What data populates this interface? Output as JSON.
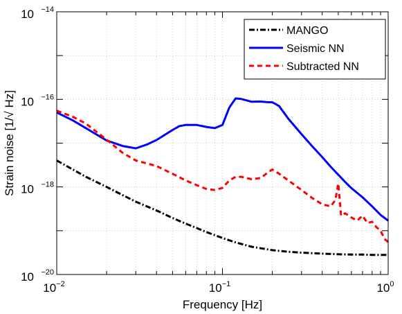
{
  "chart_data": {
    "type": "line",
    "xlabel": "Frequency [Hz]",
    "ylabel_prefix": "Strain noise [1/",
    "ylabel_suffix": " Hz]",
    "sqrt_symbol": "√",
    "x_scale": "log",
    "y_scale": "log",
    "xlim": [
      0.01,
      1
    ],
    "ylim": [
      1e-20,
      1e-14
    ],
    "grid": "dotted",
    "legend_position": "top-right",
    "x_ticks": [
      {
        "value": 0.01,
        "base": "10",
        "exp": "−2"
      },
      {
        "value": 0.1,
        "base": "10",
        "exp": "−1"
      },
      {
        "value": 1,
        "base": "10",
        "exp": "0"
      }
    ],
    "y_ticks": [
      {
        "value": 1e-20,
        "base": "10",
        "exp": "−20"
      },
      {
        "value": 1e-18,
        "base": "10",
        "exp": "−18"
      },
      {
        "value": 1e-16,
        "base": "10",
        "exp": "−16"
      },
      {
        "value": 1e-14,
        "base": "10",
        "exp": "−14"
      }
    ],
    "series": [
      {
        "name": "MANGO",
        "color": "#000000",
        "dash": "dashdot",
        "x": [
          0.01,
          0.0125,
          0.015,
          0.02,
          0.025,
          0.03,
          0.04,
          0.05,
          0.06,
          0.07,
          0.08,
          0.1,
          0.12,
          0.15,
          0.2,
          0.25,
          0.3,
          0.4,
          0.5,
          0.6,
          0.7,
          0.8,
          1.0
        ],
        "y": [
          4e-18,
          2.5e-18,
          1.7e-18,
          1e-18,
          6.5e-19,
          4.6e-19,
          2.9e-19,
          1.95e-19,
          1.45e-19,
          1.15e-19,
          9.3e-20,
          6.8e-20,
          5.4e-20,
          4.3e-20,
          3.6e-20,
          3.3e-20,
          3.15e-20,
          3e-20,
          2.9e-20,
          2.85e-20,
          2.85e-20,
          2.8e-20,
          2.8e-20
        ]
      },
      {
        "name": "Seismic NN",
        "color": "#0000ff",
        "dash": "solid",
        "x": [
          0.01,
          0.0125,
          0.015,
          0.02,
          0.025,
          0.03,
          0.035,
          0.04,
          0.05,
          0.055,
          0.06,
          0.07,
          0.08,
          0.09,
          0.1,
          0.11,
          0.12,
          0.13,
          0.15,
          0.17,
          0.19,
          0.2,
          0.22,
          0.25,
          0.3,
          0.35,
          0.4,
          0.45,
          0.5,
          0.55,
          0.6,
          0.7,
          0.8,
          0.9,
          1.0
        ],
        "y": [
          5e-17,
          3.3e-17,
          2.2e-17,
          1.15e-17,
          8.6e-18,
          7.6e-18,
          9.3e-18,
          1.18e-17,
          2e-17,
          2.45e-17,
          2.6e-17,
          2.6e-17,
          2.35e-17,
          2.2e-17,
          2.6e-17,
          6.5e-17,
          1.05e-16,
          1.02e-16,
          8.8e-17,
          8.9e-17,
          8.6e-17,
          8.6e-17,
          7e-17,
          3.6e-17,
          1.6e-17,
          8.3e-18,
          4.8e-18,
          2.9e-18,
          1.9e-18,
          1.3e-18,
          9.4e-19,
          5.8e-19,
          3.6e-19,
          2.3e-19,
          1.7e-19
        ]
      },
      {
        "name": "Subtracted NN",
        "color": "#ff0000",
        "dash": "dashed",
        "x": [
          0.01,
          0.0125,
          0.015,
          0.02,
          0.025,
          0.03,
          0.04,
          0.05,
          0.06,
          0.07,
          0.08,
          0.09,
          0.1,
          0.11,
          0.12,
          0.13,
          0.15,
          0.17,
          0.19,
          0.2,
          0.22,
          0.25,
          0.3,
          0.35,
          0.4,
          0.45,
          0.48,
          0.5,
          0.52,
          0.55,
          0.6,
          0.65,
          0.7,
          0.75,
          0.8,
          0.85,
          0.9,
          0.95,
          1.0
        ],
        "y": [
          5.5e-17,
          4e-17,
          2.8e-17,
          1.2e-17,
          6e-18,
          4e-18,
          3e-18,
          2e-18,
          1.4e-18,
          1.1e-18,
          9e-19,
          8.5e-19,
          9.5e-19,
          1.4e-18,
          1.7e-18,
          1.7e-18,
          1.5e-18,
          1.6e-18,
          2.2e-18,
          2.5e-18,
          2e-18,
          1.4e-18,
          8.5e-19,
          5.5e-19,
          4e-19,
          3.6e-19,
          5e-19,
          1.2e-18,
          2.2e-19,
          2.5e-19,
          2e-19,
          1.7e-19,
          2.2e-19,
          1.5e-19,
          1.6e-19,
          1.2e-19,
          1e-19,
          6.5e-20,
          5.5e-20
        ]
      }
    ]
  }
}
